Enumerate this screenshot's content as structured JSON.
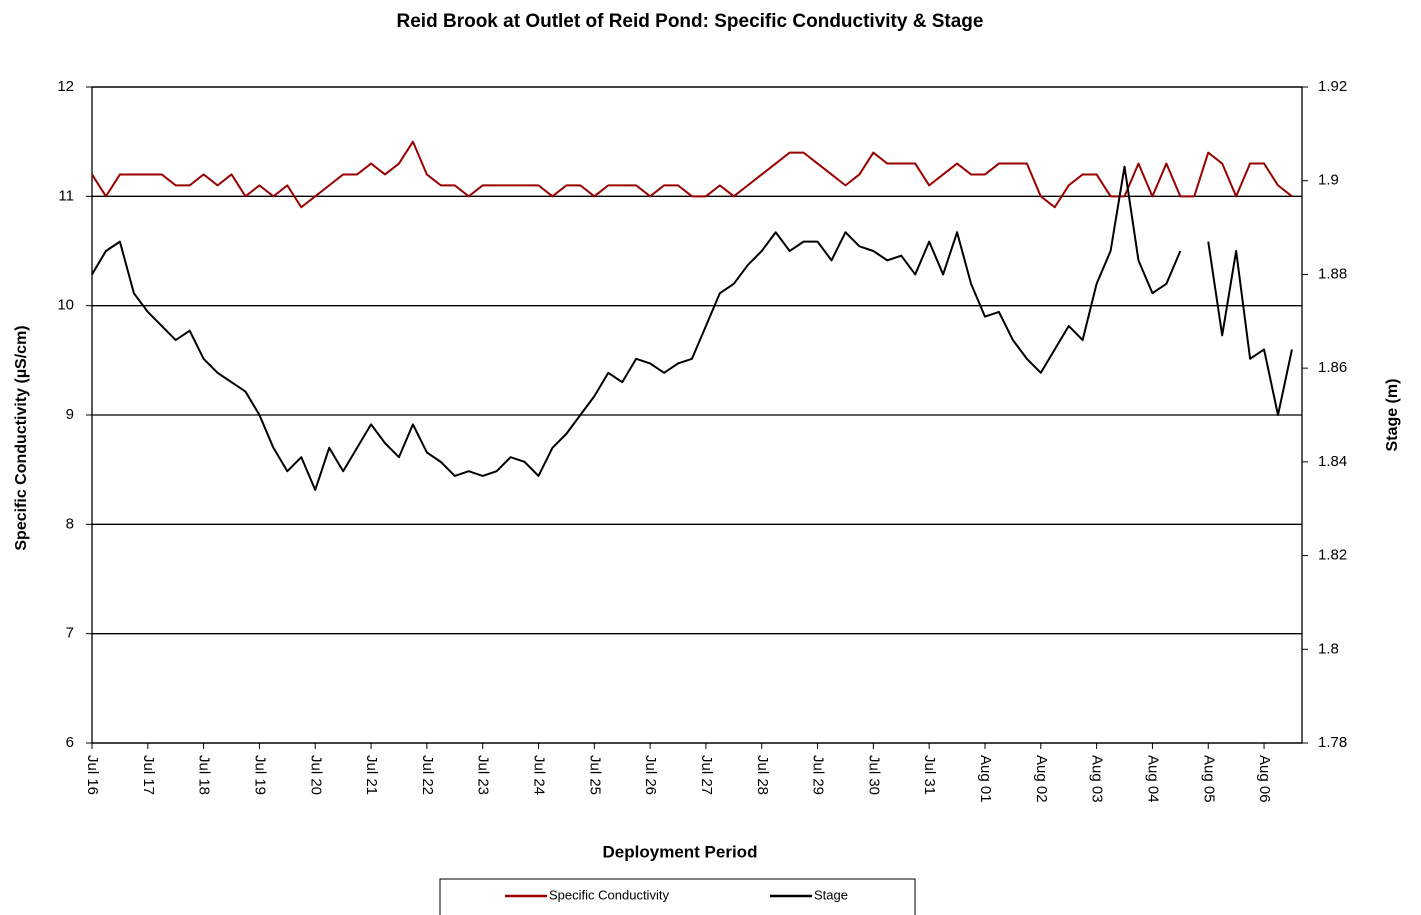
{
  "chart_data": {
    "type": "line",
    "title": "Reid Brook at Outlet of Reid Pond: Specific Conductivity & Stage",
    "x_label": "Deployment Period",
    "y_label": "Specific Conductivity (µS/cm)",
    "y2_label": "Stage (m)",
    "x": [
      0,
      0.25,
      0.5,
      0.75,
      1,
      1.25,
      1.5,
      1.75,
      2,
      2.25,
      2.5,
      2.75,
      3,
      3.25,
      3.5,
      3.75,
      4,
      4.25,
      4.5,
      4.75,
      5,
      5.25,
      5.5,
      5.75,
      6,
      6.25,
      6.5,
      6.75,
      7,
      7.25,
      7.5,
      7.75,
      8,
      8.25,
      8.5,
      8.75,
      9,
      9.25,
      9.5,
      9.75,
      10,
      10.25,
      10.5,
      10.75,
      11,
      11.25,
      11.5,
      11.75,
      12,
      12.25,
      12.5,
      12.75,
      13,
      13.25,
      13.5,
      13.75,
      14,
      14.25,
      14.5,
      14.75,
      15,
      15.25,
      15.5,
      15.75,
      16,
      16.25,
      16.5,
      16.75,
      17,
      17.25,
      17.5,
      17.75,
      18,
      18.25,
      18.5,
      18.75,
      19,
      19.25,
      19.5,
      19.75,
      20,
      20.25,
      20.5,
      20.75,
      21,
      21.25,
      21.5
    ],
    "xlim": [
      0,
      21.68
    ],
    "xticks": [
      {
        "value": 0,
        "label": "Jul 16"
      },
      {
        "value": 1,
        "label": "Jul 17"
      },
      {
        "value": 2,
        "label": "Jul 18"
      },
      {
        "value": 3,
        "label": "Jul 19"
      },
      {
        "value": 4,
        "label": "Jul 20"
      },
      {
        "value": 5,
        "label": "Jul 21"
      },
      {
        "value": 6,
        "label": "Jul 22"
      },
      {
        "value": 7,
        "label": "Jul 23"
      },
      {
        "value": 8,
        "label": "Jul 24"
      },
      {
        "value": 9,
        "label": "Jul 25"
      },
      {
        "value": 10,
        "label": "Jul 26"
      },
      {
        "value": 11,
        "label": "Jul 27"
      },
      {
        "value": 12,
        "label": "Jul 28"
      },
      {
        "value": 13,
        "label": "Jul 29"
      },
      {
        "value": 14,
        "label": "Jul 30"
      },
      {
        "value": 15,
        "label": "Jul 31"
      },
      {
        "value": 16,
        "label": "Aug 01"
      },
      {
        "value": 17,
        "label": "Aug 02"
      },
      {
        "value": 18,
        "label": "Aug 03"
      },
      {
        "value": 19,
        "label": "Aug 04"
      },
      {
        "value": 20,
        "label": "Aug 05"
      },
      {
        "value": 21,
        "label": "Aug 06"
      }
    ],
    "ylim": [
      6,
      12
    ],
    "yticks": [
      6,
      7,
      8,
      9,
      10,
      11,
      12
    ],
    "y2lim": [
      1.78,
      1.92
    ],
    "y2ticks": [
      1.78,
      1.8,
      1.82,
      1.84,
      1.86,
      1.88,
      1.9,
      1.92
    ],
    "grid": true,
    "legend": "bottom",
    "series": [
      {
        "name": "Specific Conductivity",
        "color": "#990000",
        "axis": "y",
        "values": [
          11.2,
          11.0,
          11.2,
          11.2,
          11.2,
          11.2,
          11.1,
          11.1,
          11.2,
          11.1,
          11.2,
          11.0,
          11.1,
          11.0,
          11.1,
          10.9,
          11.0,
          11.1,
          11.2,
          11.2,
          11.3,
          11.2,
          11.3,
          11.5,
          11.2,
          11.1,
          11.1,
          11.0,
          11.1,
          11.1,
          11.1,
          11.1,
          11.1,
          11.0,
          11.1,
          11.1,
          11.0,
          11.1,
          11.1,
          11.1,
          11.0,
          11.1,
          11.1,
          11.0,
          11.0,
          11.1,
          11.0,
          11.1,
          11.2,
          11.3,
          11.4,
          11.4,
          11.3,
          11.2,
          11.1,
          11.2,
          11.4,
          11.3,
          11.3,
          11.3,
          11.1,
          11.2,
          11.3,
          11.2,
          11.2,
          11.3,
          11.3,
          11.3,
          11.0,
          10.9,
          11.1,
          11.2,
          11.2,
          11.0,
          11.0,
          11.3,
          11.0,
          11.3,
          11.0,
          11.0,
          11.4,
          11.3,
          11.0,
          11.3,
          11.3,
          11.1,
          11.0
        ]
      },
      {
        "name": "Stage",
        "color": "#000000",
        "axis": "y2",
        "values": [
          1.88,
          1.885,
          1.887,
          1.876,
          1.872,
          1.869,
          1.866,
          1.868,
          1.862,
          1.859,
          1.857,
          1.855,
          1.85,
          1.843,
          1.838,
          1.841,
          1.834,
          1.843,
          1.838,
          1.843,
          1.848,
          1.844,
          1.841,
          1.848,
          1.842,
          1.84,
          1.837,
          1.838,
          1.837,
          1.838,
          1.841,
          1.84,
          1.837,
          1.843,
          1.846,
          1.85,
          1.854,
          1.859,
          1.857,
          1.862,
          1.861,
          1.859,
          1.861,
          1.862,
          1.869,
          1.876,
          1.878,
          1.882,
          1.885,
          1.889,
          1.885,
          1.887,
          1.887,
          1.883,
          1.889,
          1.886,
          1.885,
          1.883,
          1.884,
          1.88,
          1.887,
          1.88,
          1.889,
          1.878,
          1.871,
          1.872,
          1.866,
          1.862,
          1.859,
          1.864,
          1.869,
          1.866,
          1.878,
          1.885,
          1.903,
          1.883,
          1.876,
          1.878,
          1.885,
          null,
          1.887,
          1.867,
          1.885,
          1.862,
          1.864,
          1.85,
          1.864
        ]
      }
    ]
  }
}
